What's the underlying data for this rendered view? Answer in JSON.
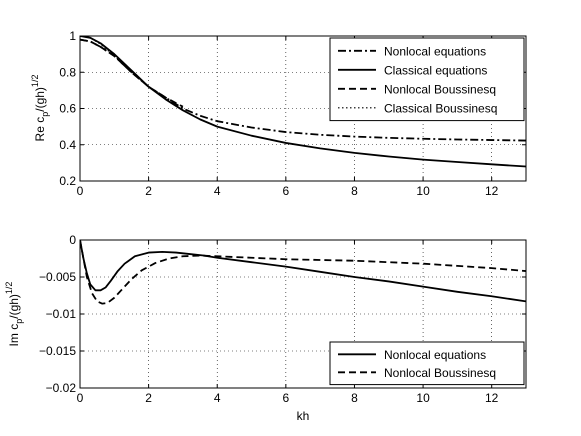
{
  "chart_data": [
    {
      "type": "line",
      "ylabel_main": "Re c",
      "ylabel_sub": "p",
      "ylabel_rest": "/(gh)",
      "ylabel_sup": "1/2",
      "xlabel": "",
      "xlim": [
        0,
        13
      ],
      "ylim": [
        0.2,
        1.0
      ],
      "xticks": [
        0,
        2,
        4,
        6,
        8,
        10,
        12
      ],
      "yticks": [
        0.2,
        0.4,
        0.6,
        0.8,
        1.0
      ],
      "xtick_labels": [
        "0",
        "2",
        "4",
        "6",
        "8",
        "10",
        "12"
      ],
      "ytick_labels": [
        "0.2",
        "0.4",
        "0.6",
        "0.8",
        "1"
      ],
      "grid": true,
      "legend_position": "top-right",
      "series": [
        {
          "name": "Nonlocal equations",
          "style": "dashdot",
          "x": [
            0,
            0.3,
            0.6,
            1.0,
            1.5,
            2.0,
            2.5,
            3.0,
            3.5,
            4.0,
            5.0,
            6.0,
            7.0,
            8.0,
            9.0,
            10.0,
            11.0,
            12.0,
            13.0
          ],
          "y": [
            0.98,
            0.97,
            0.94,
            0.89,
            0.8,
            0.72,
            0.66,
            0.6,
            0.56,
            0.53,
            0.495,
            0.47,
            0.455,
            0.445,
            0.438,
            0.433,
            0.429,
            0.426,
            0.423
          ]
        },
        {
          "name": "Classical equations",
          "style": "solid",
          "x": [
            0,
            0.3,
            0.6,
            1.0,
            1.5,
            2.0,
            2.5,
            3.0,
            3.5,
            4.0,
            5.0,
            6.0,
            7.0,
            8.0,
            9.0,
            10.0,
            11.0,
            12.0,
            13.0
          ],
          "y": [
            1.0,
            0.99,
            0.96,
            0.9,
            0.81,
            0.72,
            0.65,
            0.59,
            0.54,
            0.5,
            0.45,
            0.41,
            0.38,
            0.355,
            0.335,
            0.318,
            0.305,
            0.292,
            0.28
          ]
        },
        {
          "name": "Nonlocal Boussinesq",
          "style": "dashed",
          "x": [
            0,
            0.3,
            0.6,
            1.0,
            1.5,
            2.0,
            2.5,
            3.0
          ],
          "y": [
            0.98,
            0.97,
            0.94,
            0.89,
            0.8,
            0.72,
            0.66,
            0.61
          ]
        },
        {
          "name": "Classical Boussinesq",
          "style": "dotted",
          "x": [
            0,
            0.3,
            0.6,
            1.0,
            1.5,
            2.0,
            2.5
          ],
          "y": [
            1.0,
            0.99,
            0.955,
            0.89,
            0.8,
            0.72,
            0.66
          ]
        }
      ]
    },
    {
      "type": "line",
      "ylabel_main": "Im c",
      "ylabel_sub": "p",
      "ylabel_rest": "/(gh)",
      "ylabel_sup": "1/2",
      "xlabel": "kh",
      "xlim": [
        0,
        13
      ],
      "ylim": [
        -0.02,
        0
      ],
      "xticks": [
        0,
        2,
        4,
        6,
        8,
        10,
        12
      ],
      "yticks": [
        -0.02,
        -0.015,
        -0.01,
        -0.005,
        0
      ],
      "xtick_labels": [
        "0",
        "2",
        "4",
        "6",
        "8",
        "10",
        "12"
      ],
      "ytick_labels": [
        "−0.02",
        "−0.015",
        "−0.01",
        "−0.005",
        "0"
      ],
      "grid": true,
      "legend_position": "bottom-right",
      "series": [
        {
          "name": "Nonlocal equations",
          "style": "solid",
          "x": [
            0,
            0.1,
            0.2,
            0.3,
            0.45,
            0.6,
            0.75,
            0.9,
            1.1,
            1.3,
            1.6,
            2.0,
            2.4,
            2.8,
            3.2,
            3.6,
            4.0,
            5.0,
            6.0,
            7.0,
            8.0,
            9.0,
            10.0,
            11.0,
            12.0,
            13.0
          ],
          "y": [
            0,
            -0.0025,
            -0.0045,
            -0.006,
            -0.0068,
            -0.0068,
            -0.0064,
            -0.0055,
            -0.0042,
            -0.0032,
            -0.0022,
            -0.0017,
            -0.0016,
            -0.0017,
            -0.0019,
            -0.0021,
            -0.0024,
            -0.003,
            -0.0036,
            -0.0043,
            -0.005,
            -0.0056,
            -0.0063,
            -0.007,
            -0.0076,
            -0.0083
          ]
        },
        {
          "name": "Nonlocal Boussinesq",
          "style": "dashed",
          "x": [
            0,
            0.1,
            0.2,
            0.35,
            0.5,
            0.65,
            0.8,
            1.0,
            1.2,
            1.5,
            1.8,
            2.2,
            2.6,
            3.0,
            3.5,
            4.0,
            5.0,
            6.0,
            7.0,
            8.0,
            9.0,
            10.0,
            11.0,
            12.0,
            13.0
          ],
          "y": [
            0,
            -0.0025,
            -0.005,
            -0.0072,
            -0.0083,
            -0.0086,
            -0.0085,
            -0.0078,
            -0.0068,
            -0.0053,
            -0.0041,
            -0.0031,
            -0.0025,
            -0.0022,
            -0.0021,
            -0.0022,
            -0.0024,
            -0.0026,
            -0.0027,
            -0.0028,
            -0.003,
            -0.0032,
            -0.0035,
            -0.0038,
            -0.0042
          ]
        }
      ]
    }
  ]
}
